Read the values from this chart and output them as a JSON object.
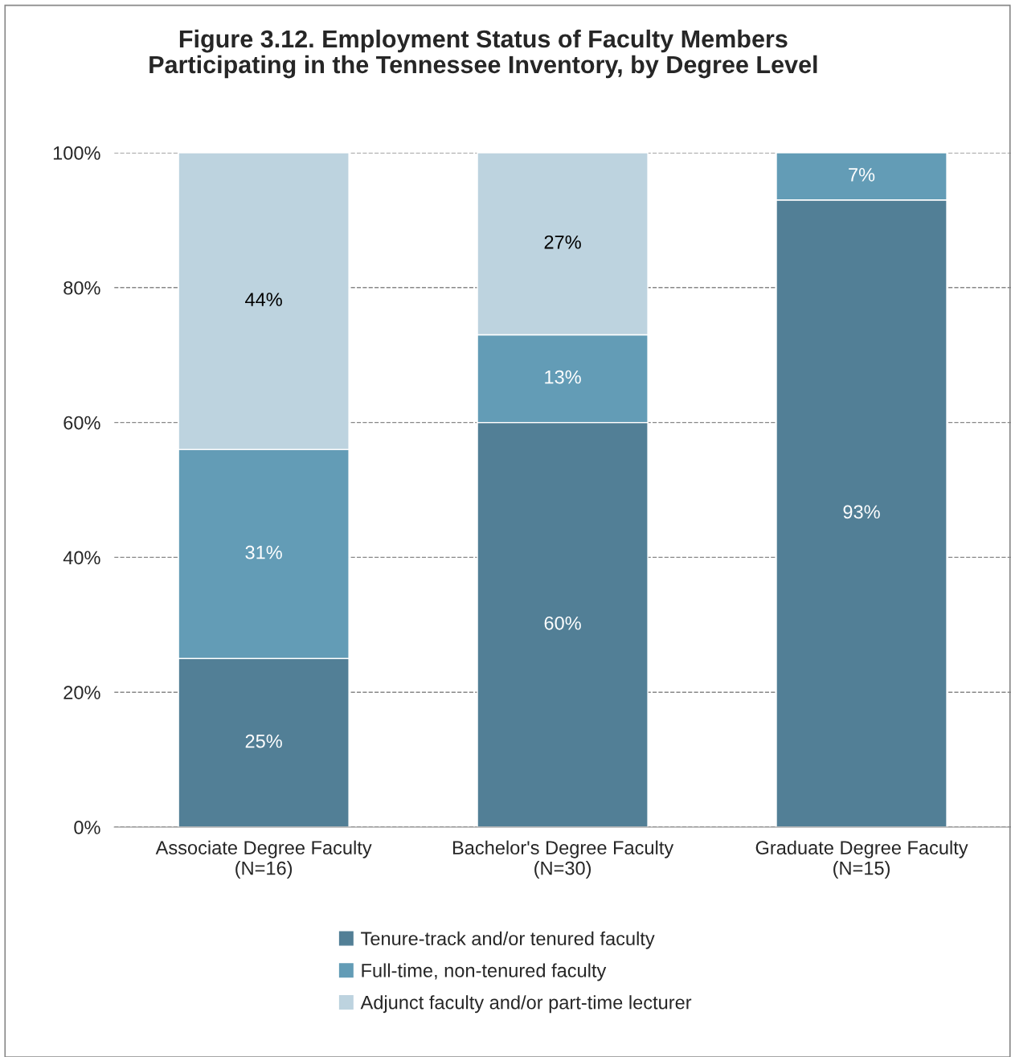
{
  "chart_data": {
    "type": "bar",
    "stacked": true,
    "title": "Figure 3.12. Employment Status of Faculty Members\nParticipating in the Tennessee Inventory, by Degree Level",
    "categories": [
      "Associate Degree Faculty\n(N=16)",
      "Bachelor's Degree Faculty\n(N=30)",
      "Graduate Degree Faculty\n(N=15)"
    ],
    "series": [
      {
        "name": "Tenure-track and/or tenured faculty",
        "color": "#527f96",
        "values": [
          25,
          60,
          93
        ],
        "value_labels": [
          "25%",
          "60%",
          "93%"
        ]
      },
      {
        "name": "Full-time, non-tenured faculty",
        "color": "#639cb6",
        "values": [
          31,
          13,
          7
        ],
        "value_labels": [
          "31%",
          "13%",
          "7%"
        ]
      },
      {
        "name": "Adjunct faculty and/or part-time lecturer",
        "color": "#bdd3df",
        "values": [
          44,
          27,
          null
        ],
        "value_labels": [
          "44%",
          "27%",
          null
        ]
      }
    ],
    "ylim": [
      0,
      100
    ],
    "yticks": [
      {
        "value": 0,
        "label": "0%"
      },
      {
        "value": 20,
        "label": "20%"
      },
      {
        "value": 40,
        "label": "40%"
      },
      {
        "value": 60,
        "label": "60%"
      },
      {
        "value": 80,
        "label": "80%"
      },
      {
        "value": 100,
        "label": "100%"
      }
    ],
    "grid": "y",
    "legend": "bottom"
  }
}
